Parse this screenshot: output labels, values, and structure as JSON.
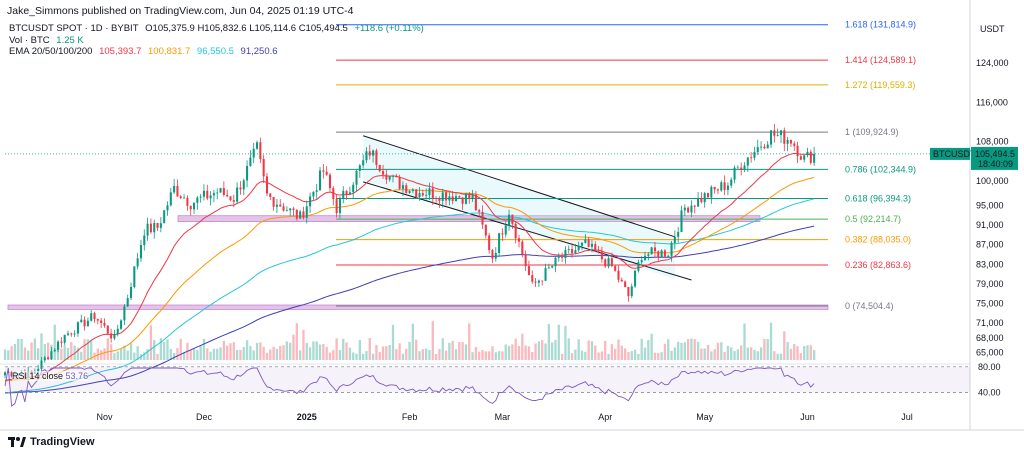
{
  "header": {
    "published": "Jake_Simmons published on TradingView.com, Jun 04, 2025 01:19 UTC-4"
  },
  "legend": {
    "symbol": "BTCUSDT SPOT · 1D · BYBIT",
    "ohlc": "O105,375.9  H105,832.6  L105,114.6  C105,494.5",
    "change": "+118.6 (+0.11%)",
    "vol_label": "Vol · BTC",
    "vol_value": "1.25 K",
    "ema_label": "EMA 20/50/100/200",
    "ema20": "105,393.7",
    "ema50": "100,831.7",
    "ema100": "96,550.5",
    "ema200": "91,250.6"
  },
  "rsi": {
    "label": "RSI 14 close",
    "value": "53.76"
  },
  "brand": {
    "name": "TradingView"
  },
  "colors": {
    "up": "#089981",
    "down": "#f23645",
    "ema20": "#f23645",
    "ema50": "#ff9800",
    "ema100": "#26c6da",
    "ema200": "#3f3fb7",
    "rsi": "#7e57c2",
    "zone": "#ce93d8"
  },
  "chart_data": {
    "type": "candlestick",
    "title": "BTCUSDT SPOT · 1D · BYBIT",
    "currency": "USDT",
    "yticks": [
      124000,
      116000,
      108000,
      100000,
      95000,
      91000,
      87000,
      83000,
      79000,
      75000,
      71000,
      68000,
      65000
    ],
    "ylim": [
      63500,
      134000
    ],
    "xticks": [
      {
        "label": "Nov",
        "date": "2024-11-01"
      },
      {
        "label": "Dec",
        "date": "2024-12-01"
      },
      {
        "label": "2025",
        "date": "2025-01-01"
      },
      {
        "label": "Feb",
        "date": "2025-02-01"
      },
      {
        "label": "Mar",
        "date": "2025-03-01"
      },
      {
        "label": "Apr",
        "date": "2025-04-01"
      },
      {
        "label": "May",
        "date": "2025-05-01"
      },
      {
        "label": "Jun",
        "date": "2025-06-01"
      },
      {
        "label": "Jul",
        "date": "2025-07-01"
      }
    ],
    "xlim": [
      "2024-10-02",
      "2025-07-20"
    ],
    "fib_levels": [
      {
        "label": "1.618 (131,814.9)",
        "value": 131814.9,
        "color": "#2962ff"
      },
      {
        "label": "1.414 (124,589.1)",
        "value": 124589.1,
        "color": "#f23645"
      },
      {
        "label": "1.272 (119,559.3)",
        "value": 119559.3,
        "color": "#e0b000"
      },
      {
        "label": "1 (109,924.9)",
        "value": 109924.9,
        "color": "#787b86"
      },
      {
        "label": "0.786 (102,344.9)",
        "value": 102344.9,
        "color": "#089981"
      },
      {
        "label": "0.618 (96,394.3)",
        "value": 96394.3,
        "color": "#089981"
      },
      {
        "label": "0.5 (92,214.7)",
        "value": 92214.7,
        "color": "#4caf50"
      },
      {
        "label": "0.382 (88,035.0)",
        "value": 88035.0,
        "color": "#ff9800"
      },
      {
        "label": "0.236 (82,863.6)",
        "value": 82863.6,
        "color": "#f23645"
      },
      {
        "label": "0 (74,504.4)",
        "value": 74504.4,
        "color": "#787b86"
      }
    ],
    "last_price": {
      "symbol": "BTCUSDT",
      "value": "105,494.5",
      "countdown": "18:40:09"
    },
    "rsi_levels": [
      {
        "label": "80.00",
        "value": 80
      },
      {
        "label": "40.00",
        "value": 40
      }
    ],
    "anchors": [
      [
        "2024-10-02",
        61000
      ],
      [
        "2024-10-10",
        60500
      ],
      [
        "2024-10-20",
        68500
      ],
      [
        "2024-10-29",
        72500
      ],
      [
        "2024-11-04",
        67800
      ],
      [
        "2024-11-08",
        76500
      ],
      [
        "2024-11-13",
        90000
      ],
      [
        "2024-11-17",
        90500
      ],
      [
        "2024-11-22",
        98500
      ],
      [
        "2024-11-27",
        95500
      ],
      [
        "2024-12-05",
        97800
      ],
      [
        "2024-12-10",
        96500
      ],
      [
        "2024-12-17",
        106500
      ],
      [
        "2024-12-20",
        97000
      ],
      [
        "2024-12-30",
        92500
      ],
      [
        "2025-01-06",
        102000
      ],
      [
        "2025-01-10",
        94500
      ],
      [
        "2025-01-20",
        106000
      ],
      [
        "2025-01-27",
        100000
      ],
      [
        "2025-02-03",
        98000
      ],
      [
        "2025-02-20",
        96500
      ],
      [
        "2025-02-26",
        84500
      ],
      [
        "2025-03-03",
        94000
      ],
      [
        "2025-03-10",
        78500
      ],
      [
        "2025-03-18",
        84000
      ],
      [
        "2025-03-26",
        87000
      ],
      [
        "2025-04-03",
        82500
      ],
      [
        "2025-04-08",
        76500
      ],
      [
        "2025-04-12",
        85000
      ],
      [
        "2025-04-20",
        85500
      ],
      [
        "2025-04-25",
        94500
      ],
      [
        "2025-05-08",
        99500
      ],
      [
        "2025-05-12",
        103500
      ],
      [
        "2025-05-21",
        109500
      ],
      [
        "2025-05-27",
        108500
      ],
      [
        "2025-05-31",
        104500
      ],
      [
        "2025-06-03",
        105494.5
      ]
    ],
    "volume_note": "daily volume bars, Vol · BTC 1.25 K last"
  }
}
